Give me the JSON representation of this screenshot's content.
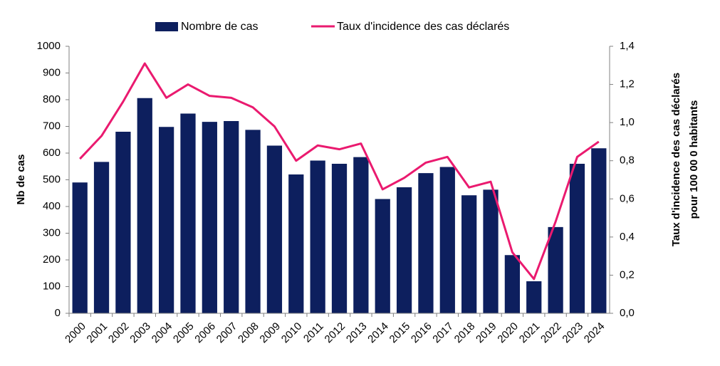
{
  "chart_data": {
    "type": "bar-line",
    "categories": [
      "2000",
      "2001",
      "2002",
      "2003",
      "2004",
      "2005",
      "2006",
      "2007",
      "2008",
      "2009",
      "2010",
      "2011",
      "2012",
      "2013",
      "2014",
      "2015",
      "2016",
      "2017",
      "2018",
      "2019",
      "2020",
      "2021",
      "2022",
      "2023",
      "2024"
    ],
    "series": [
      {
        "name": "Nombre de cas",
        "type": "bar",
        "color": "#0d1f5e",
        "values": [
          490,
          567,
          680,
          806,
          698,
          748,
          717,
          720,
          687,
          628,
          520,
          572,
          560,
          585,
          428,
          472,
          525,
          548,
          442,
          463,
          218,
          120,
          323,
          560,
          618
        ]
      },
      {
        "name": "Taux d'incidence des cas déclarés",
        "type": "line",
        "axis": "y2",
        "color": "#ea1a6f",
        "values": [
          0.81,
          0.93,
          1.11,
          1.31,
          1.13,
          1.2,
          1.14,
          1.13,
          1.08,
          0.98,
          0.8,
          0.88,
          0.86,
          0.89,
          0.65,
          0.71,
          0.79,
          0.82,
          0.66,
          0.69,
          0.32,
          0.18,
          0.48,
          0.82,
          0.9
        ]
      }
    ],
    "ylabel": "Nb de cas",
    "y2label": [
      "Taux d'incidence des cas déclarés",
      "pour 100 00 0 habitants"
    ],
    "ylim": [
      0,
      1000
    ],
    "yticks": [
      0,
      100,
      200,
      300,
      400,
      500,
      600,
      700,
      800,
      900,
      1000
    ],
    "y2lim": [
      0,
      1.4
    ],
    "y2ticks": [
      {
        "value": 0,
        "label": "0,0"
      },
      {
        "value": 0.2,
        "label": "0,2"
      },
      {
        "value": 0.4,
        "label": "0,4"
      },
      {
        "value": 0.6,
        "label": "0,6"
      },
      {
        "value": 0.8,
        "label": "0,8"
      },
      {
        "value": 1.0,
        "label": "1,0"
      },
      {
        "value": 1.2,
        "label": "1,2"
      },
      {
        "value": 1.4,
        "label": "1,4"
      }
    ],
    "grid": false,
    "legend": "top"
  }
}
